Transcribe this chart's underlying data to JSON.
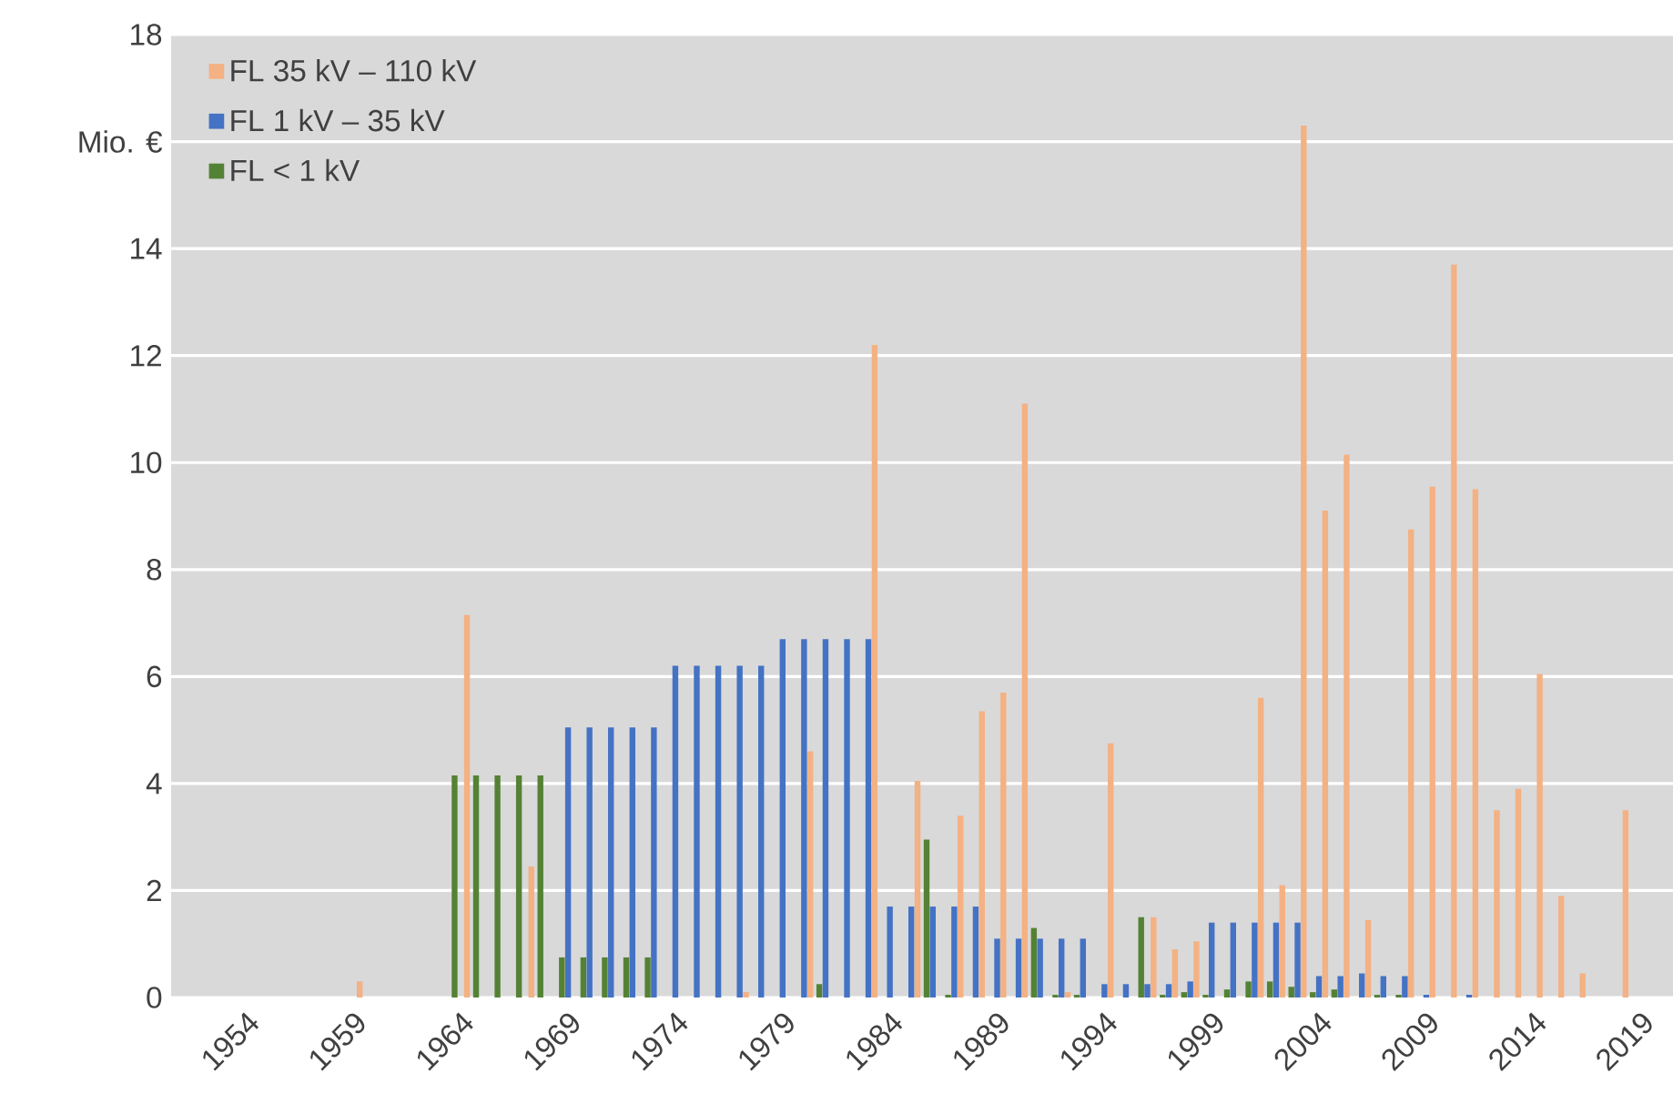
{
  "chart_data": {
    "type": "bar",
    "categories": [
      null,
      null,
      null,
      "1954",
      null,
      null,
      null,
      null,
      "1959",
      null,
      null,
      null,
      null,
      "1964",
      null,
      null,
      null,
      null,
      "1969",
      null,
      null,
      null,
      null,
      "1974",
      null,
      null,
      null,
      null,
      "1979",
      null,
      null,
      null,
      null,
      "1984",
      null,
      null,
      null,
      null,
      "1989",
      null,
      null,
      null,
      null,
      "1994",
      null,
      null,
      null,
      null,
      "1999",
      null,
      null,
      null,
      null,
      "2004",
      null,
      null,
      null,
      null,
      "2009",
      null,
      null,
      null,
      null,
      "2014",
      null,
      null,
      null,
      null,
      "2019",
      null
    ],
    "series": [
      {
        "name": "FL 35 kV – 110 kV",
        "color": "#f4b183",
        "values": [
          null,
          null,
          null,
          null,
          null,
          null,
          null,
          null,
          0.3,
          null,
          null,
          null,
          null,
          7.15,
          null,
          null,
          2.45,
          null,
          null,
          null,
          null,
          null,
          null,
          null,
          null,
          null,
          0.1,
          null,
          null,
          4.6,
          null,
          null,
          12.2,
          null,
          4.05,
          null,
          3.4,
          5.35,
          5.7,
          11.1,
          null,
          0.1,
          null,
          4.75,
          null,
          1.5,
          0.9,
          1.05,
          null,
          null,
          5.6,
          2.1,
          16.3,
          9.1,
          10.15,
          1.45,
          null,
          8.75,
          9.55,
          13.7,
          9.5,
          3.5,
          3.9,
          6.05,
          1.9,
          0.45,
          null,
          3.5,
          null,
          null
        ]
      },
      {
        "name": "FL 1 kV – 35 kV",
        "color": "#4472c4",
        "values": [
          null,
          null,
          null,
          null,
          null,
          null,
          null,
          null,
          null,
          null,
          null,
          null,
          null,
          null,
          null,
          null,
          null,
          null,
          5.05,
          5.05,
          5.05,
          5.05,
          5.05,
          6.2,
          6.2,
          6.2,
          6.2,
          6.2,
          6.7,
          6.7,
          6.7,
          6.7,
          6.7,
          1.7,
          1.7,
          1.7,
          1.7,
          1.7,
          1.1,
          1.1,
          1.1,
          1.1,
          1.1,
          0.25,
          0.25,
          0.25,
          0.25,
          0.3,
          1.4,
          1.4,
          1.4,
          1.4,
          1.4,
          0.4,
          0.4,
          0.45,
          0.4,
          0.4,
          0.05,
          null,
          0.05,
          null,
          null,
          null,
          null,
          null,
          null,
          null,
          null,
          null
        ]
      },
      {
        "name": "FL < 1 kV",
        "color": "#548235",
        "values": [
          null,
          null,
          null,
          null,
          null,
          null,
          null,
          null,
          null,
          null,
          null,
          null,
          null,
          4.15,
          4.15,
          4.15,
          4.15,
          4.15,
          0.75,
          0.75,
          0.75,
          0.75,
          0.75,
          null,
          null,
          null,
          null,
          null,
          null,
          null,
          0.25,
          null,
          null,
          null,
          null,
          2.95,
          0.05,
          null,
          null,
          null,
          1.3,
          0.05,
          0.05,
          null,
          null,
          1.5,
          0.05,
          0.1,
          0.05,
          0.15,
          0.3,
          0.3,
          0.2,
          0.1,
          0.15,
          null,
          0.05,
          0.05,
          null,
          null,
          null,
          null,
          null,
          null,
          null,
          null,
          null,
          null,
          null,
          null
        ]
      }
    ],
    "ylim": [
      0,
      18
    ],
    "yticks": [
      0,
      2,
      4,
      6,
      8,
      10,
      12,
      14,
      {
        "value": 16,
        "label": "Mio. €"
      },
      18
    ],
    "grid": "y",
    "legend": "top left"
  }
}
